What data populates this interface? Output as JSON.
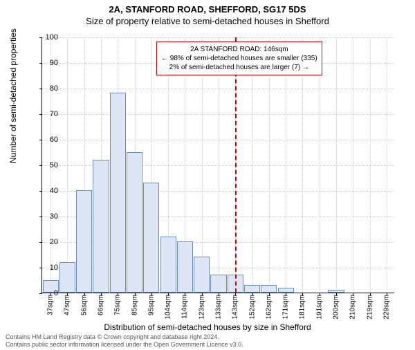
{
  "title_line1": "2A, STANFORD ROAD, SHEFFORD, SG17 5DS",
  "title_line2": "Size of property relative to semi-detached houses in Shefford",
  "ylabel": "Number of semi-detached properties",
  "xlabel": "Distribution of semi-detached houses by size in Shefford",
  "footer_line1": "Contains HM Land Registry data © Crown copyright and database right 2024.",
  "footer_line2": "Contains public sector information licensed under the Open Government Licence v3.0.",
  "annotation": {
    "line1": "2A STANFORD ROAD: 146sqm",
    "line2": "← 98% of semi-detached houses are smaller (335)",
    "line3": "2% of semi-detached houses are larger (7) →",
    "border_color": "#cc0000"
  },
  "chart": {
    "type": "histogram",
    "ylim": [
      0,
      100
    ],
    "ytick_step": 10,
    "background_color": "#ffffff",
    "grid_color": "#cccccc",
    "bar_fill": "#dce6f5",
    "bar_border": "#6a8fbf",
    "marker_color": "#cc0000",
    "marker_x_index": 11.5,
    "categories": [
      "37sqm",
      "47sqm",
      "56sqm",
      "66sqm",
      "75sqm",
      "85sqm",
      "95sqm",
      "104sqm",
      "114sqm",
      "123sqm",
      "133sqm",
      "143sqm",
      "152sqm",
      "162sqm",
      "171sqm",
      "181sqm",
      "191sqm",
      "200sqm",
      "210sqm",
      "219sqm",
      "229sqm"
    ],
    "values": [
      5,
      12,
      40,
      52,
      78,
      55,
      43,
      22,
      20,
      14,
      7,
      7,
      3,
      3,
      2,
      0,
      0,
      1,
      0,
      0,
      0
    ]
  }
}
